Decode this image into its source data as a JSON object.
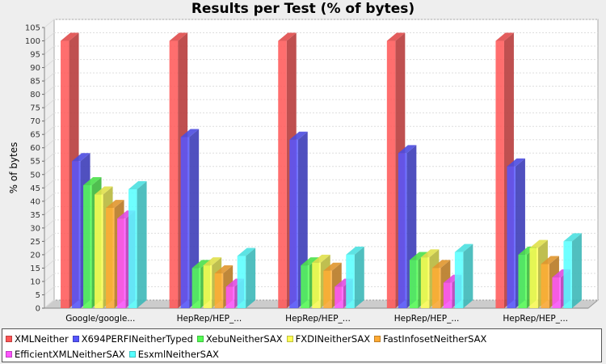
{
  "chart_data": {
    "type": "bar",
    "title": "Results per Test (% of bytes)",
    "ylabel": "% of bytes",
    "xlabel": "",
    "ylim": [
      0,
      105
    ],
    "ytick_step": 5,
    "grid": true,
    "legend_position": "bottom",
    "categories": [
      "Google/google...",
      "HepRep/HEP_...",
      "HepRep/HEP_...",
      "HepRep/HEP_...",
      "HepRep/HEP_..."
    ],
    "series": [
      {
        "name": "XMLNeither",
        "color": "#ff5555",
        "values": [
          100,
          100,
          100,
          100,
          100
        ]
      },
      {
        "name": "X694PERFINeitherTyped",
        "color": "#5555ff",
        "values": [
          55,
          64,
          63,
          58,
          53
        ]
      },
      {
        "name": "XebuNeitherSAX",
        "color": "#55ff55",
        "values": [
          46,
          15,
          16,
          18,
          20
        ]
      },
      {
        "name": "FXDINeitherSAX",
        "color": "#ffff55",
        "values": [
          42.5,
          16,
          17,
          19,
          22.5
        ]
      },
      {
        "name": "FastInfosetNeitherSAX",
        "color": "#ffaa33",
        "values": [
          37.5,
          13,
          14,
          15,
          16.5
        ]
      },
      {
        "name": "EfficientXMLNeitherSAX",
        "color": "#ff55ff",
        "values": [
          33.5,
          8,
          8,
          9.5,
          11.5
        ]
      },
      {
        "name": "EsxmlNeitherSAX",
        "color": "#55ffff",
        "values": [
          44.5,
          19.5,
          20,
          21,
          25
        ]
      }
    ]
  }
}
